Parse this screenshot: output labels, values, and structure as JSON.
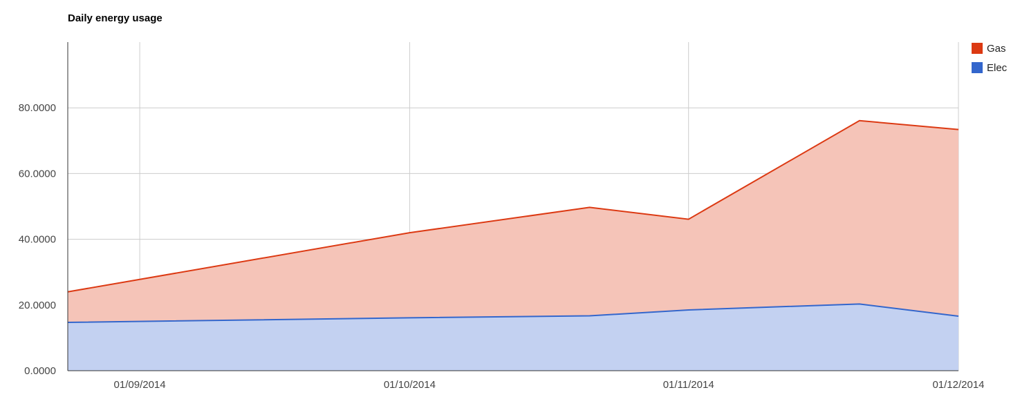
{
  "chart_data": {
    "type": "area",
    "stacked": true,
    "title": "Daily energy usage",
    "xlabel": "",
    "ylabel": "",
    "x": [
      "2014-08-24",
      "2014-10-01",
      "2014-10-21",
      "2014-11-01",
      "2014-11-20",
      "2014-12-01"
    ],
    "xlim": [
      "2014-08-24",
      "2014-12-01"
    ],
    "ylim": [
      0,
      100
    ],
    "y_ticks": [
      0,
      20,
      40,
      60,
      80
    ],
    "y_tick_labels": [
      "0.0000",
      "20.0000",
      "40.0000",
      "60.0000",
      "80.0000"
    ],
    "x_ticks": [
      "2014-09-01",
      "2014-10-01",
      "2014-11-01",
      "2014-12-01"
    ],
    "x_tick_labels": [
      "01/09/2014",
      "01/10/2014",
      "01/11/2014",
      "01/12/2014"
    ],
    "series": [
      {
        "name": "Gas",
        "color": "#dc3912",
        "values": [
          9.3,
          25.9,
          33.0,
          27.6,
          55.8,
          56.8
        ]
      },
      {
        "name": "Elec",
        "color": "#3366cc",
        "values": [
          14.7,
          16.1,
          16.7,
          18.5,
          20.3,
          16.6
        ]
      }
    ],
    "grid": true,
    "legend_position": "right"
  }
}
